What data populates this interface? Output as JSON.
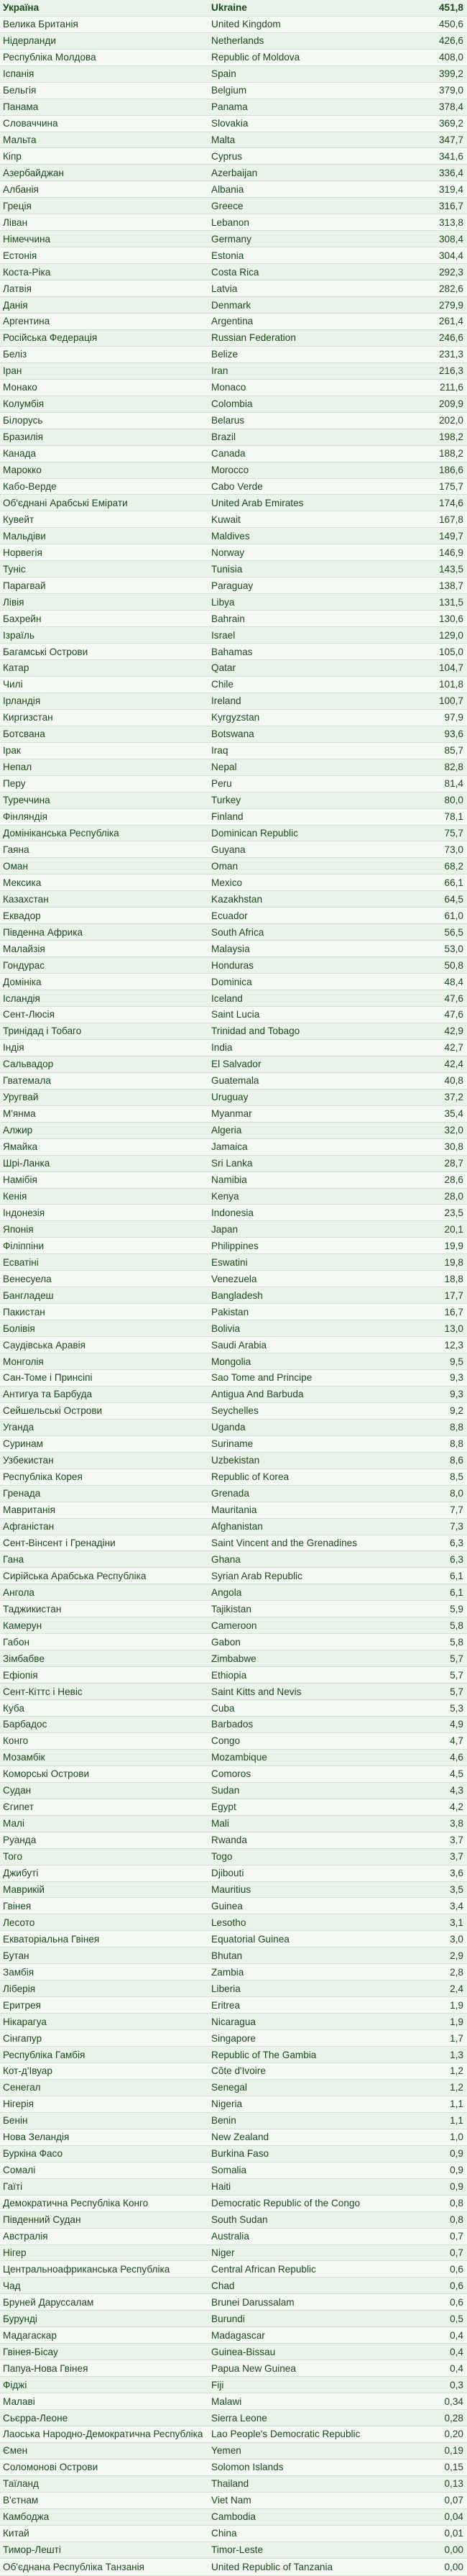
{
  "header": {
    "ukrainian": "Україна",
    "english": "Ukraine",
    "value": "451,8"
  },
  "rows": [
    [
      "Велика Британія",
      "United Kingdom",
      "450,6"
    ],
    [
      "Нідерланди",
      "Netherlands",
      "426,6"
    ],
    [
      "Республіка Молдова",
      "Republic of Moldova",
      "408,0"
    ],
    [
      "Іспанія",
      "Spain",
      "399,2"
    ],
    [
      "Бельгія",
      "Belgium",
      "379,0"
    ],
    [
      "Панама",
      "Panama",
      "378,4"
    ],
    [
      "Словаччина",
      "Slovakia",
      "369,2"
    ],
    [
      "Мальта",
      "Malta",
      "347,7"
    ],
    [
      "Кіпр",
      "Cyprus",
      "341,6"
    ],
    [
      "Азербайджан",
      "Azerbaijan",
      "336,4"
    ],
    [
      "Албанія",
      "Albania",
      "319,4"
    ],
    [
      "Греція",
      "Greece",
      "316,7"
    ],
    [
      "Ліван",
      "Lebanon",
      "313,8"
    ],
    [
      "Німеччина",
      "Germany",
      "308,4"
    ],
    [
      "Естонія",
      "Estonia",
      "304,4"
    ],
    [
      "Коста-Ріка",
      "Costa Rica",
      "292,3"
    ],
    [
      "Латвія",
      "Latvia",
      "282,6"
    ],
    [
      "Данія",
      "Denmark",
      "279,9"
    ],
    [
      "Аргентина",
      "Argentina",
      "261,4"
    ],
    [
      "Російська Федерація",
      "Russian Federation",
      "246,6"
    ],
    [
      "Беліз",
      "Belize",
      "231,3"
    ],
    [
      "Іран",
      "Iran",
      "216,3"
    ],
    [
      "Монако",
      "Monaco",
      "211,6"
    ],
    [
      "Колумбія",
      "Colombia",
      "209,9"
    ],
    [
      "Білорусь",
      "Belarus",
      "202,0"
    ],
    [
      "Бразилія",
      "Brazil",
      "198,2"
    ],
    [
      "Канада",
      "Canada",
      "188,2"
    ],
    [
      "Марокко",
      "Morocco",
      "186,6"
    ],
    [
      "Кабо-Верде",
      "Cabo Verde",
      "175,7"
    ],
    [
      "Об'єднані Арабські Емірати",
      "United Arab Emirates",
      "174,6"
    ],
    [
      "Кувейт",
      "Kuwait",
      "167,8"
    ],
    [
      "Мальдіви",
      "Maldives",
      "149,7"
    ],
    [
      "Норвегія",
      "Norway",
      "146,9"
    ],
    [
      "Туніс",
      "Tunisia",
      "143,5"
    ],
    [
      "Парагвай",
      "Paraguay",
      "138,7"
    ],
    [
      "Лівія",
      "Libya",
      "131,5"
    ],
    [
      "Бахрейн",
      "Bahrain",
      "130,6"
    ],
    [
      "Ізраїль",
      "Israel",
      "129,0"
    ],
    [
      "Багамські Острови",
      "Bahamas",
      "105,0"
    ],
    [
      "Катар",
      "Qatar",
      "104,7"
    ],
    [
      "Чилі",
      "Chile",
      "101,8"
    ],
    [
      "Ірландія",
      "Ireland",
      "100,7"
    ],
    [
      "Киргизстан",
      "Kyrgyzstan",
      "97,9"
    ],
    [
      "Ботсвана",
      "Botswana",
      "93,6"
    ],
    [
      "Ірак",
      "Iraq",
      "85,7"
    ],
    [
      "Непал",
      "Nepal",
      "82,8"
    ],
    [
      "Перу",
      "Peru",
      "81,4"
    ],
    [
      "Туреччина",
      "Turkey",
      "80,0"
    ],
    [
      "Фінляндія",
      "Finland",
      "78,1"
    ],
    [
      "Домініканська Республіка",
      "Dominican Republic",
      "75,7"
    ],
    [
      "Гаяна",
      "Guyana",
      "73,0"
    ],
    [
      "Оман",
      "Oman",
      "68,2"
    ],
    [
      "Мексика",
      "Mexico",
      "66,1"
    ],
    [
      "Казахстан",
      "Kazakhstan",
      "64,5"
    ],
    [
      "Еквадор",
      "Ecuador",
      "61,0"
    ],
    [
      "Південна Африка",
      "South Africa",
      "56,5"
    ],
    [
      "Малайзія",
      "Malaysia",
      "53,0"
    ],
    [
      "Гондурас",
      "Honduras",
      "50,8"
    ],
    [
      "Домініка",
      "Dominica",
      "48,4"
    ],
    [
      "Ісландія",
      "Iceland",
      "47,6"
    ],
    [
      "Сент-Люсія",
      "Saint Lucia",
      "47,6"
    ],
    [
      "Тринідад і Тобаго",
      "Trinidad and Tobago",
      "42,9"
    ],
    [
      "Індія",
      "India",
      "42,7"
    ],
    [
      "Сальвадор",
      "El Salvador",
      "42,4"
    ],
    [
      "Гватемала",
      "Guatemala",
      "40,8"
    ],
    [
      "Уругвай",
      "Uruguay",
      "37,2"
    ],
    [
      "М'янма",
      "Myanmar",
      "35,4"
    ],
    [
      "Алжир",
      "Algeria",
      "32,0"
    ],
    [
      "Ямайка",
      "Jamaica",
      "30,8"
    ],
    [
      "Шрі-Ланка",
      "Sri Lanka",
      "28,7"
    ],
    [
      "Намібія",
      "Namibia",
      "28,6"
    ],
    [
      "Кенія",
      "Kenya",
      "28,0"
    ],
    [
      "Індонезія",
      "Indonesia",
      "23,5"
    ],
    [
      "Японія",
      "Japan",
      "20,1"
    ],
    [
      "Філіппіни",
      "Philippines",
      "19,9"
    ],
    [
      "Есватіні",
      "Eswatini",
      "19,8"
    ],
    [
      "Венесуела",
      "Venezuela",
      "18,8"
    ],
    [
      "Бангладеш",
      "Bangladesh",
      "17,7"
    ],
    [
      "Пакистан",
      "Pakistan",
      "16,7"
    ],
    [
      "Болівія",
      "Bolivia",
      "13,0"
    ],
    [
      "Саудівська Аравія",
      "Saudi Arabia",
      "12,3"
    ],
    [
      "Монголія",
      "Mongolia",
      "9,5"
    ],
    [
      "Сан-Томе і Принсіпі",
      "Sao Tome and Principe",
      "9,3"
    ],
    [
      "Антигуа та Барбуда",
      "Antigua And Barbuda",
      "9,3"
    ],
    [
      "Сейшельські Острови",
      "Seychelles",
      "9,2"
    ],
    [
      "Уганда",
      "Uganda",
      "8,8"
    ],
    [
      "Суринам",
      "Suriname",
      "8,8"
    ],
    [
      "Узбекистан",
      "Uzbekistan",
      "8,6"
    ],
    [
      "Республіка Корея",
      "Republic of Korea",
      "8,5"
    ],
    [
      "Гренада",
      "Grenada",
      "8,0"
    ],
    [
      "Мавританія",
      "Mauritania",
      "7,7"
    ],
    [
      "Афганістан",
      "Afghanistan",
      "7,3"
    ],
    [
      "Сент-Вінсент і Гренадіни",
      "Saint Vincent and the Grenadines",
      "6,3"
    ],
    [
      "Гана",
      "Ghana",
      "6,3"
    ],
    [
      "Сирійська Арабська Республіка",
      "Syrian Arab Republic",
      "6,1"
    ],
    [
      "Ангола",
      "Angola",
      "6,1"
    ],
    [
      "Таджикистан",
      "Tajikistan",
      "5,9"
    ],
    [
      "Камерун",
      "Cameroon",
      "5,8"
    ],
    [
      "Габон",
      "Gabon",
      "5,8"
    ],
    [
      "Зімбабве",
      "Zimbabwe",
      "5,7"
    ],
    [
      "Ефіопія",
      "Ethiopia",
      "5,7"
    ],
    [
      "Сент-Кіттс і Невіс",
      "Saint Kitts and Nevis",
      "5,7"
    ],
    [
      "Куба",
      "Cuba",
      "5,3"
    ],
    [
      "Барбадос",
      "Barbados",
      "4,9"
    ],
    [
      "Конго",
      "Congo",
      "4,7"
    ],
    [
      "Мозамбік",
      "Mozambique",
      "4,6"
    ],
    [
      "Коморські Острови",
      "Comoros",
      "4,5"
    ],
    [
      "Судан",
      "Sudan",
      "4,3"
    ],
    [
      "Єгипет",
      "Egypt",
      "4,2"
    ],
    [
      "Малі",
      "Mali",
      "3,8"
    ],
    [
      "Руанда",
      "Rwanda",
      "3,7"
    ],
    [
      "Того",
      "Togo",
      "3,7"
    ],
    [
      "Джибуті",
      "Djibouti",
      "3,6"
    ],
    [
      "Маврикій",
      "Mauritius",
      "3,5"
    ],
    [
      "Гвінея",
      "Guinea",
      "3,4"
    ],
    [
      "Лесото",
      "Lesotho",
      "3,1"
    ],
    [
      "Екваторіальна Гвінея",
      "Equatorial Guinea",
      "3,0"
    ],
    [
      "Бутан",
      "Bhutan",
      "2,9"
    ],
    [
      "Замбія",
      "Zambia",
      "2,8"
    ],
    [
      "Ліберія",
      "Liberia",
      "2,4"
    ],
    [
      "Еритрея",
      "Eritrea",
      "1,9"
    ],
    [
      "Нікарагуа",
      "Nicaragua",
      "1,9"
    ],
    [
      "Сінгапур",
      "Singapore",
      "1,7"
    ],
    [
      "Республіка Гамбія",
      "Republic of The Gambia",
      "1,3"
    ],
    [
      "Кот-д'Івуар",
      "Côte d'Ivoire",
      "1,2"
    ],
    [
      "Сенегал",
      "Senegal",
      "1,2"
    ],
    [
      "Нігерія",
      "Nigeria",
      "1,1"
    ],
    [
      "Бенін",
      "Benin",
      "1,1"
    ],
    [
      "Нова Зеландія",
      "New Zealand",
      "1,0"
    ],
    [
      "Буркіна Фасо",
      "Burkina Faso",
      "0,9"
    ],
    [
      "Сомалі",
      "Somalia",
      "0,9"
    ],
    [
      "Гаїті",
      "Haiti",
      "0,9"
    ],
    [
      "Демократична Республіка Конго",
      "Democratic Republic of the Congo",
      "0,8"
    ],
    [
      "Південний Судан",
      "South Sudan",
      "0,8"
    ],
    [
      "Австралія",
      "Australia",
      "0,7"
    ],
    [
      "Нігер",
      "Niger",
      "0,7"
    ],
    [
      "Центральноафриканська Республіка",
      "Central African Republic",
      "0,6"
    ],
    [
      "Чад",
      "Chad",
      "0,6"
    ],
    [
      "Бруней Даруссалам",
      "Brunei Darussalam",
      "0,6"
    ],
    [
      "Бурунді",
      "Burundi",
      "0,5"
    ],
    [
      "Мадагаскар",
      "Madagascar",
      "0,4"
    ],
    [
      "Гвінея-Бісау",
      "Guinea-Bissau",
      "0,4"
    ],
    [
      "Папуа-Нова Гвінея",
      "Papua New Guinea",
      "0,4"
    ],
    [
      "Фіджі",
      "Fiji",
      "0,3"
    ],
    [
      "Малаві",
      "Malawi",
      "0,34"
    ],
    [
      "Сьєрра-Леоне",
      "Sierra Leone",
      "0,28"
    ],
    [
      "Лаоська Народно-Демократична Республіка",
      "Lao People's Democratic Republic",
      "0,20"
    ],
    [
      "Ємен",
      "Yemen",
      "0,19"
    ],
    [
      "Соломонові Острови",
      "Solomon Islands",
      "0,15"
    ],
    [
      "Таїланд",
      "Thailand",
      "0,13"
    ],
    [
      "В'єтнам",
      "Viet Nam",
      "0,07"
    ],
    [
      "Камбоджа",
      "Cambodia",
      "0,04"
    ],
    [
      "Китай",
      "China",
      "0,01"
    ],
    [
      "Тимор-Лешті",
      "Timor-Leste",
      "0,00"
    ],
    [
      "Об'єднана Республіка Танзанія",
      "United Republic of Tanzania",
      "0,00"
    ]
  ]
}
